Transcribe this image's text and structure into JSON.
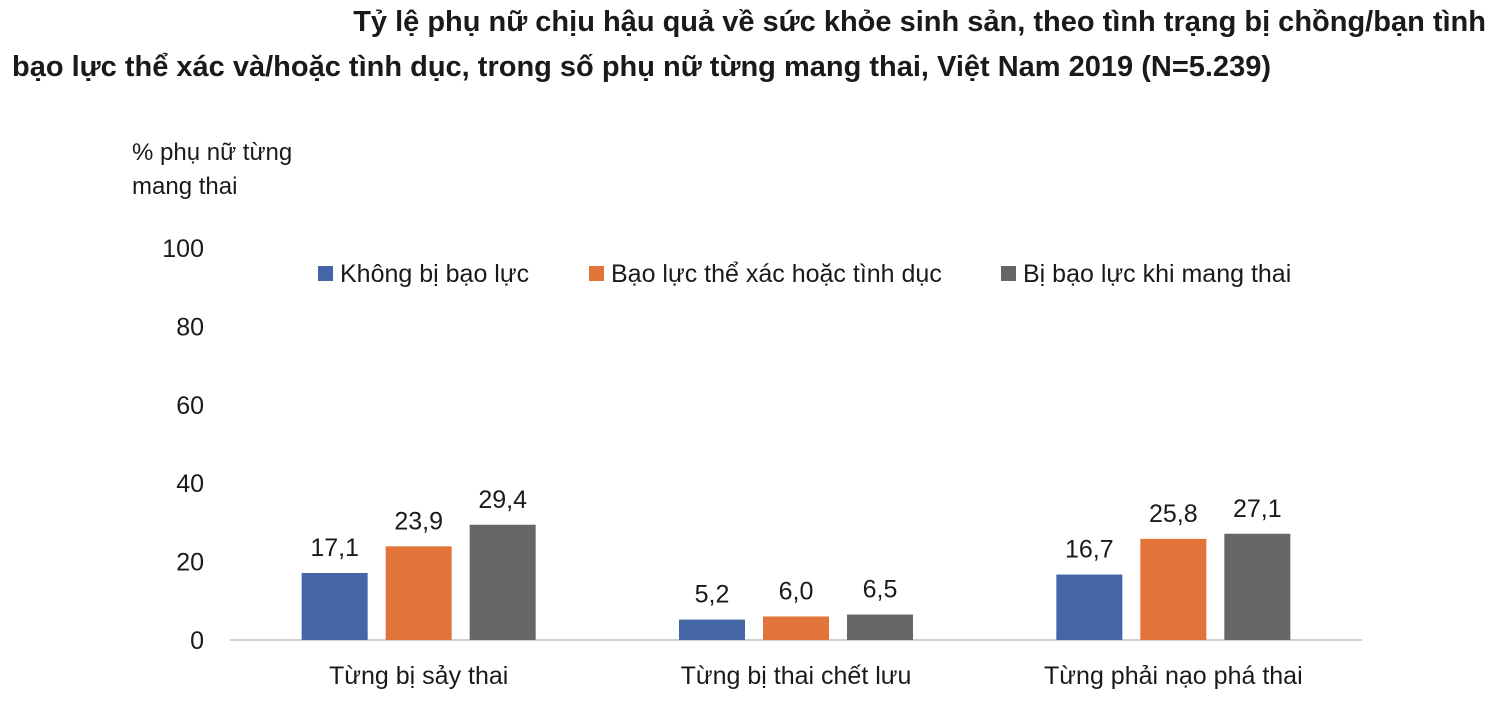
{
  "title_line1": "Tỷ lệ phụ nữ chịu hậu quả về sức khỏe sinh sản, theo tình trạng bị chồng/bạn tình",
  "title_line2": "bạo lực thể xác và/hoặc tình dục, trong số phụ nữ từng mang thai, Việt Nam 2019 (N=5.239)",
  "chart_data": {
    "type": "bar",
    "title": "Tỷ lệ phụ nữ chịu hậu quả về sức khỏe sinh sản, theo tình trạng bị chồng/bạn tình bạo lực thể xác và/hoặc tình dục, trong số phụ nữ từng mang thai, Việt Nam 2019 (N=5.239)",
    "ylabel_lines": [
      "% phụ nữ từng",
      "mang thai"
    ],
    "xlabel": "",
    "ylim": [
      0,
      100
    ],
    "yticks": [
      0,
      20,
      40,
      60,
      80,
      100
    ],
    "categories": [
      "Từng bị sảy thai",
      "Từng bị thai chết lưu",
      "Từng phải nạo phá thai"
    ],
    "series": [
      {
        "name": "Không bị bạo lực",
        "color": "#4466a6",
        "values": [
          17.1,
          5.2,
          16.7
        ],
        "labels": [
          "17,1",
          "5,2",
          "16,7"
        ]
      },
      {
        "name": "Bạo lực thể xác hoặc tình dục",
        "color": "#e2743a",
        "values": [
          23.9,
          6.0,
          25.8
        ],
        "labels": [
          "23,9",
          "6,0",
          "25,8"
        ]
      },
      {
        "name": "Bị bạo lực khi mang thai",
        "color": "#666666",
        "values": [
          29.4,
          6.5,
          27.1
        ],
        "labels": [
          "29,4",
          "6,5",
          "27,1"
        ]
      }
    ],
    "legend_position": "top",
    "grid": false
  }
}
